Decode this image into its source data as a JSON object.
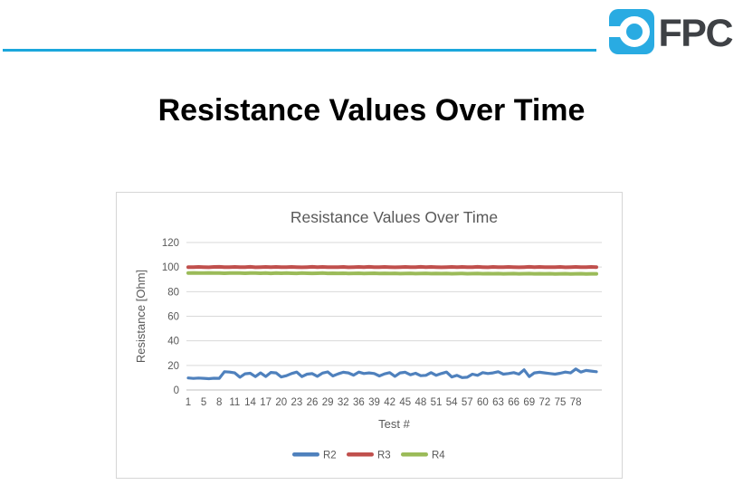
{
  "header": {
    "brand": "FPC",
    "colors": {
      "logo_blue": "#29ABE2",
      "rule_blue": "#1BA7DC",
      "brand_text": "#3E4145"
    }
  },
  "page": {
    "title": "Resistance Values Over Time"
  },
  "chart_data": {
    "type": "line",
    "title": "Resistance Values Over Time",
    "xlabel": "Test #",
    "ylabel": "Resistance [Ohm]",
    "ylim": [
      0,
      120
    ],
    "yticks": [
      0,
      20,
      40,
      60,
      80,
      100,
      120
    ],
    "xtick_labels": [
      "1",
      "5",
      "8",
      "11",
      "14",
      "17",
      "20",
      "23",
      "26",
      "29",
      "32",
      "36",
      "39",
      "42",
      "45",
      "48",
      "51",
      "54",
      "57",
      "60",
      "63",
      "66",
      "69",
      "72",
      "75",
      "78"
    ],
    "xtick_interval": 3,
    "grid": "horizontal",
    "legend_position": "bottom",
    "axis_text_color": "#595959",
    "gridline_color": "#D9D9D9",
    "axis_line_color": "#BFBFBF",
    "series": [
      {
        "name": "R2",
        "color": "#4F81BD",
        "values": [
          9.8,
          9.4,
          9.7,
          9.5,
          9.2,
          9.6,
          9.5,
          14.9,
          14.6,
          13.9,
          10.4,
          13.2,
          13.6,
          10.9,
          13.9,
          11.0,
          14.3,
          13.9,
          10.6,
          11.6,
          13.4,
          14.6,
          10.9,
          12.9,
          13.3,
          11.1,
          13.8,
          14.7,
          11.4,
          13.1,
          14.4,
          13.9,
          12.1,
          14.6,
          13.4,
          13.9,
          13.4,
          11.4,
          13.1,
          14.1,
          11.1,
          13.9,
          14.4,
          12.4,
          13.6,
          11.6,
          11.9,
          14.1,
          11.9,
          13.4,
          14.6,
          10.6,
          11.9,
          10.1,
          10.4,
          12.9,
          11.9,
          14.1,
          13.4,
          13.9,
          14.9,
          12.9,
          13.4,
          14.1,
          12.9,
          16.4,
          10.9,
          13.9,
          14.4,
          13.9,
          13.4,
          12.9,
          13.6,
          14.6,
          13.9,
          17.1,
          14.6,
          15.9,
          15.4,
          14.9
        ]
      },
      {
        "name": "R3",
        "color": "#C0504D",
        "values": [
          100.0,
          99.9,
          100.1,
          100.0,
          99.8,
          100.1,
          100.2,
          99.9,
          100.0,
          100.1,
          99.9,
          100.0,
          100.2,
          99.8,
          100.0,
          100.1,
          99.9,
          100.1,
          100.0,
          99.9,
          100.1,
          100.0,
          99.8,
          100.0,
          100.2,
          99.9,
          100.1,
          100.0,
          99.9,
          100.0,
          100.1,
          99.8,
          100.0,
          100.1,
          99.9,
          100.2,
          100.0,
          99.9,
          100.1,
          100.0,
          99.8,
          100.0,
          100.1,
          99.9,
          100.0,
          100.2,
          99.9,
          100.1,
          100.0,
          99.8,
          100.0,
          100.1,
          99.9,
          100.1,
          100.0,
          99.9,
          100.2,
          100.0,
          99.8,
          100.1,
          100.0,
          99.9,
          100.1,
          100.0,
          99.8,
          100.0,
          100.2,
          99.9,
          100.1,
          100.0,
          99.9,
          100.0,
          100.1,
          99.8,
          100.0,
          100.1,
          99.9,
          100.0,
          100.1,
          100.0
        ]
      },
      {
        "name": "R4",
        "color": "#9BBB59",
        "values": [
          95.2,
          95.3,
          95.1,
          95.2,
          95.3,
          95.1,
          95.2,
          95.0,
          95.2,
          95.1,
          95.2,
          95.0,
          95.1,
          95.2,
          95.0,
          95.1,
          94.9,
          95.1,
          95.0,
          95.1,
          95.0,
          94.9,
          95.1,
          95.0,
          94.9,
          95.0,
          95.1,
          94.9,
          95.0,
          94.9,
          95.0,
          94.8,
          94.9,
          95.0,
          94.8,
          94.9,
          95.0,
          94.8,
          94.9,
          94.8,
          94.9,
          94.7,
          94.8,
          94.9,
          94.7,
          94.8,
          94.9,
          94.7,
          94.8,
          94.7,
          94.8,
          94.6,
          94.7,
          94.8,
          94.6,
          94.7,
          94.8,
          94.6,
          94.7,
          94.6,
          94.7,
          94.5,
          94.6,
          94.7,
          94.5,
          94.6,
          94.7,
          94.5,
          94.6,
          94.5,
          94.6,
          94.4,
          94.5,
          94.6,
          94.4,
          94.5,
          94.6,
          94.4,
          94.5,
          94.5
        ]
      }
    ]
  }
}
